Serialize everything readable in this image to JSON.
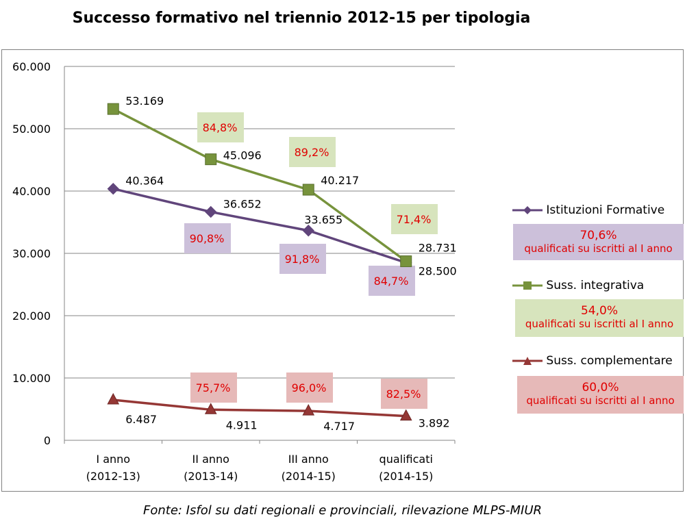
{
  "chart_data": {
    "type": "line",
    "title": "Successo formativo nel triennio 2012-15 per tipologia",
    "categories": [
      [
        "I anno",
        "(2012-13)"
      ],
      [
        "II anno",
        "(2013-14)"
      ],
      [
        "III anno",
        "(2014-15)"
      ],
      [
        "qualificati",
        "(2014-15)"
      ]
    ],
    "ylim": [
      0,
      60000
    ],
    "yticks": [
      0,
      10000,
      20000,
      30000,
      40000,
      50000,
      60000
    ],
    "ytick_labels": [
      "0",
      "10.000",
      "20.000",
      "30.000",
      "40.000",
      "50.000",
      "60.000"
    ],
    "grid": true,
    "series": [
      {
        "name": "Istituzioni Formative",
        "color": "#60457b",
        "marker": "diamond",
        "values": [
          40364,
          36652,
          33655,
          28500
        ],
        "value_labels": [
          "40.364",
          "36.652",
          "33.655",
          "28.500"
        ],
        "rates": [
          "90,8%",
          "91,8%",
          "84,7%"
        ],
        "rate_bg": "#ccc0da",
        "summary_pct": "70,6%",
        "summary_text": "qualificati su iscritti al I anno"
      },
      {
        "name": "Suss. integrativa",
        "color": "#77933c",
        "marker": "square",
        "values": [
          53169,
          45096,
          40217,
          28731
        ],
        "value_labels": [
          "53.169",
          "45.096",
          "40.217",
          "28.731"
        ],
        "rates": [
          "84,8%",
          "89,2%",
          "71,4%"
        ],
        "rate_bg": "#d7e4bd",
        "summary_pct": "54,0%",
        "summary_text": "qualificati su iscritti al I anno"
      },
      {
        "name": "Suss. complementare",
        "color": "#953735",
        "marker": "triangle",
        "values": [
          6487,
          4911,
          4717,
          3892
        ],
        "value_labels": [
          "6.487",
          "4.911",
          "4.717",
          "3.892"
        ],
        "rates": [
          "75,7%",
          "96,0%",
          "82,5%"
        ],
        "rate_bg": "#e6b9b8",
        "summary_pct": "60,0%",
        "summary_text": "qualificati su iscritti al I anno"
      }
    ],
    "rate_text_color": "#e00000"
  },
  "footer": "Fonte: Isfol su dati regionali e provinciali, rilevazione MLPS-MIUR"
}
